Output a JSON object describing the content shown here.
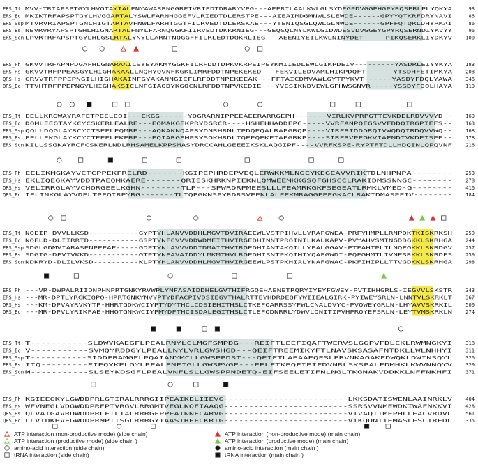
{
  "blocks": [
    {
      "rows": [
        {
          "name": "ERS_Tt",
          "seq": "MVV-TRIAPSPTGYLHVGTAYIALFNYAWARRNGGRFIVRIEDTDRARYVPG---AEERILAALKWLGLSYDEGPDVGGPHGPYRQSERLPLYQKYA",
          "num": "93"
        },
        {
          "name": "ERS_Ec",
          "seq": "MKIKTRFAPSPTGYLHVGGARTALYSWLFARNHGGEFVLRIEDTDLERSTPE---AIEAIMDGMNWLSLEWDE------GPYYQTKRFDRYNAVI",
          "num": "86"
        },
        {
          "name": "ERS_Ssp",
          "seq": "MTVRVRIAPSPTGNLHIGTARTAVFNWLFARHTGGTFILRVEDTDLERSKAE---YTENIQSGLQWLGLNWDE------GPFFQTQRLDHYRKAI",
          "num": "86"
        },
        {
          "name": "ERS_Bs",
          "seq": "NEVRVRYAPSPTGHLHIGNARTALFNYLFARNQGGKFIIRVEDTDKKRNIEG---GEQSQLNYLKWLGIDWDESVDVGGEYGPYRQSERNDIYKVYY",
          "num": "96"
        },
        {
          "name": "ERS_Scm",
          "seq": "LPVRTRFAPSPTGYLHLGSLRTALYNYLLARNTNQGGFFILRLEDTDQKRLIEG---AEENIYEILKWLNINYDET-----PIKQSERKLIYDKYV",
          "num": "100"
        }
      ]
    },
    {
      "rows": [
        {
          "name": "ERS_Ph",
          "seq": "GKVVTRFAPNPDGAFHLGNARAAILSYEYAKMYGGKFILRFDDTDPKVKRPEIPEYKMIIEDLEWLGIKPDEIV---------YASDRLEIYYKYA",
          "num": "183"
        },
        {
          "name": "ERS_Hs",
          "seq": "GKVVTRFPPEASGYLHIGHAKAALLNQHYQVNFKGKLIMRFDDTNPEKEKED---FEKVILEDVAMLHIKPDQFT------YTSDHFETIMKYA",
          "num": "208"
        },
        {
          "name": "QRS_Hs",
          "seq": "GRVVTRFPPEPNGILHIGHAKAINFGYAKANNGICFLRFDDTNPEKEEAK---FFTAICDMVAWLGYTPYKVT------YASDYFDQLYAWA",
          "num": "346"
        },
        {
          "name": "QRS_Ec",
          "seq": "TTVHTRFPPEPNGYLHIGHAKSICLNFGIAQDYKGQCNLRFDDTNPVKEDIE---YVESIKNDVEWLGFHWSGNVR-----YSSDYFDQLHAYA",
          "num": "110"
        }
      ]
    },
    {
      "rows": [
        {
          "name": "ERS_Tt",
          "seq": "EELLKRGWAYRAFETPEELEQI---EKGG------YDGRARNIPPEEAEERARRGEPH-------VIRLKVPRPGTTEVKDELRDVVVYD--",
          "num": "169"
        },
        {
          "name": "ERS_Ec",
          "seq": "DQMLEEGTAYKCYCSKERLEALRE---EQMAKGEKPRYDGRCR----HSHEHHADDEPC-----VVRFANPQEGSVVFDDQIRGPIEFS--",
          "num": "163"
        },
        {
          "name": "ERS_Ssp",
          "seq": "QQLLDQGLAYRCYCTSEELEQMRE---AQKAKNQAPRYDNRHRNLTPDQEQALRAEGRQP----VIRFRIDDDRQIVWQDQIRDQVVWQ--",
          "num": "168"
        },
        {
          "name": "ERS_Bs",
          "seq": "EELLEKGLAYKCYCTEEELEKERE---EQIARGEMPRYSGKHRDLTQEEQEKFIAEGRKP----SIRFRVPEGKVIAFNDIVKDEISFE--",
          "num": "178"
        },
        {
          "name": "ERS_Scm",
          "seq": "KILLSSGKAYRCFCSKERLNDLRHSAMELKPPSMASYDRCCAHLGEEEIKSKLAQGIPF----VVRFKSPE-RYPTFTDLLHDQINLQPQVNF",
          "num": "216"
        }
      ]
    },
    {
      "rows": [
        {
          "name": "ERS_Ph",
          "seq": "EELIKMGKAYVCTCPPEKFRELRD-------KGIPCPHRDEPVEQLERWKKMLNGEYKEGEAVVRIKTDLNHPNPA--------",
          "num": "253"
        },
        {
          "name": "ERS_Hs",
          "seq": "EKLIQEGKAYVDDTPAEQMKAERE-------QRIESKHRKNPIEKNLQMWEEMKKGSQFGHSCCLRAKIDMSSNNGC--------",
          "num": "278"
        },
        {
          "name": "QRS_Hs",
          "seq": "VELIRRGLAYVCHQRGEELKGHN--------TLP---SPWRDRPMEESLLLFEAMRKGKFSEGEATLRMKLVMED-G--------",
          "num": "416"
        },
        {
          "name": "QRS_Ec",
          "seq": "IELINKGLAYVDELTPEQIREYRG-------TLTQPGKNSPYRDRSVEENLALFEKMRAGGFEEGKACLRAKIDMASPFIV--------",
          "num": "184"
        }
      ]
    },
    {
      "rows": [
        {
          "name": "ERS_Tt",
          "seq": "NQEIP-DVVLLKSD-----------GYPTYHLANVVDDHLMGVTDVIRAEEWLVSTPIHVLLYRAFGWEA-PRFYHMPLLRNPDKTKISKRKSH",
          "num": "250"
        },
        {
          "name": "ERS_Ec",
          "seq": "NQELD-DLIIRRTD-----------GSPTYNFCVVVDDWDMEITHVIRGEDHINNTPRQINILKALKAPV-PVYAHVSMINGDDGKKLSKRHGA",
          "num": "244"
        },
        {
          "name": "ERS_Ssp",
          "seq": "SDGLGDMVIARASENPEEAF-----GDPTYNLAVVVDDIDMAITHVIRGEDHIANTAKQILLYEALGGAV-PTFAHTPLILNQEGKKLSKRDGV",
          "num": "257"
        },
        {
          "name": "ERS_Bs",
          "seq": "SDGIG-DFVIVKKD-----------GTPTYNFAVAIDDYLMKMTHVLRGEDHISNTPKQIMIYQAFGWDI-PQFGHMTLIVNESRKKLSKRDES",
          "num": "259"
        },
        {
          "name": "ERS_Scm",
          "seq": "NDKRYD-DLILVKSD----------KLPTYHLANVVDDHLMGVTHVIRGEEWLPSTPKHIALYNAFGWAC-PKFIHIPLLTTVGDKKLSKRHGA",
          "num": "298"
        }
      ]
    },
    {
      "rows": [
        {
          "name": "ERS_Ph",
          "seq": "---VR-DWPALRIIDNPHNPRTGNKYRVWPLYNFASAIDDHELGVTHIFRGQEHAENETRQRYIYEYFGWEY-PVTIHHGRLS-IEGVVLSKSTR",
          "num": "343"
        },
        {
          "name": "ERS_Hs",
          "seq": "---MR-DPTLYRCKIQPQ-HPRTGNKYNVYPTYDFACPIVDSIEGVTHALRTTEYHDRDEQFYWIIEALGIRK-PYIWEYSRLN-LNNTVLSKRKLT",
          "num": "367"
        },
        {
          "name": "QRS_Hs",
          "seq": "---KM-DPVAYRVKYTP-HHRTGDKWCIYPTYDYTHCLCDSIEHITHSLCTKEFQARRSSYFWLCNALDVYC-PVQWEYGRLN-LHYAVVSKRKIL",
          "num": "500"
        },
        {
          "name": "QRS_Ec",
          "seq": "---MR-DPVLYRIKFAE-HHQTGNKWCIYPMYDFTHCISDALEGITHSLCTLEFQDNRRLYDWVLDNITIPVHPRQYEFSRLN-LEYTVMSKRKLN",
          "num": "274"
        }
      ]
    },
    {
      "rows": [
        {
          "name": "ERS_Tt",
          "seq": "T-----------SLDWYKAEGFLPEALRNYLCLMGFSMPDG---REIFTLEEFIQAFTWERVSLGGPVFDLEKLRWMNGKYI",
          "num": "318"
        },
        {
          "name": "ERS_Ec",
          "seq": "V-----------SVMQYRDDGYLPEALLNYLVRLGWSHGD---QEIFTREEMIKYFTLNAVSKSASAFNTDKLLWLNHHYI",
          "num": "311"
        },
        {
          "name": "ERS_Ssp",
          "seq": "T-----------SIDDFRAMGFLPQAIANYMCLLGWSPPDST---QEIFTLAEAAEQFSLERVNKAGAKFDWQKLDWINSQYL",
          "num": "326"
        },
        {
          "name": "ERS_Bs",
          "seq": "IIQ---------FIEQYKELGYLPEALFNFIGLLGWSPVGE---EELFTKEQFIEIFDVNRLSKSPALFDMHKLKWVNNQYV",
          "num": "329"
        },
        {
          "name": "ERS_Scm",
          "seq": "M-----------SLSEYKDSGFLPEALVNFLSLLGWSPPNDETQ-EIFSEELETIFNLNGLTKGNAKVDDKKLNFFNKHFI",
          "num": "371"
        }
      ]
    },
    {
      "rows": [
        {
          "name": "ERS_Ph",
          "seq": "KGIEEGKYLGWDDPRLGTIRALRRRGIIPEAIKELIIEVG-------------------------LKKSDATISWENLAAINRKLV",
          "num": "404"
        },
        {
          "name": "ERS_Hs",
          "seq": "WFVNEGLVDGWDDPRFPTVRGVLRRGMTVEGLKQFIAAQG-------------------------SSRSVVNMEWDKIWAFNKKVI",
          "num": "428"
        },
        {
          "name": "QRS_Hs",
          "seq": "QLVATGAVRDWDDPRLFTLTALRRRGFPPEAINNFCARVG-------------------------VTVAQTTMEPHLLEACVRDVL",
          "num": "561"
        },
        {
          "name": "QRS_Ec",
          "seq": "LLVTDKHVEGWDDPRMPTISGLRRRGYTAASIREFCKRIG-------------------------VTKQDNTIEMASLESCIREDL",
          "num": "335"
        }
      ]
    }
  ],
  "legend": [
    {
      "symbol": "open-triangle-red",
      "text": "ATP interaction (non-productive mode) (side chain)"
    },
    {
      "symbol": "filled-triangle-red",
      "text": "ATP interaction (non-productive mode) (main chain)"
    },
    {
      "symbol": "open-triangle-green",
      "text": "ATP interaction (productive mode) (side chain )"
    },
    {
      "symbol": "filled-triangle-green",
      "text": "ATP interaction (productive mode) (main chain)"
    },
    {
      "symbol": "open-circle",
      "text": "amino-acid interaction (side chain)"
    },
    {
      "symbol": "filled-circle",
      "text": "amino-acid interaction (main chain )"
    },
    {
      "symbol": "open-square",
      "text": "tRNA interaction (side chain)"
    },
    {
      "symbol": "filled-square",
      "text": "tRNA interaction (main chain )"
    }
  ],
  "colors": {
    "yellow_highlight": "#f5e94a",
    "gray_highlight": "#d6e2e0",
    "blue_residue": "#3a3ab8",
    "atp_red": "#e03030",
    "atp_green": "#7ac943"
  }
}
